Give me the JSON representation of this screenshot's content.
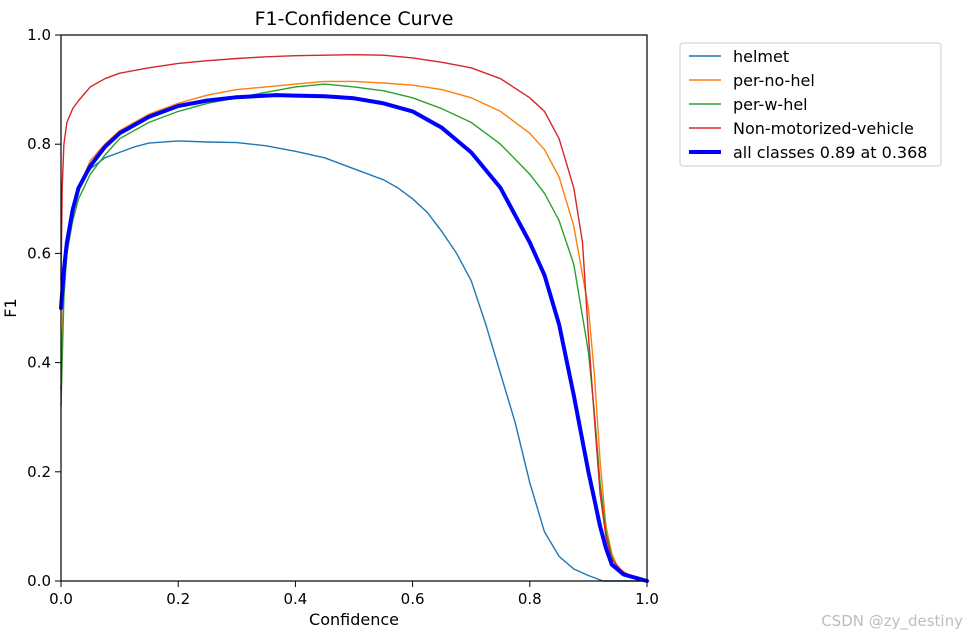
{
  "chart_data": {
    "type": "line",
    "title": "F1-Confidence Curve",
    "xlabel": "Confidence",
    "ylabel": "F1",
    "xlim": [
      0.0,
      1.0
    ],
    "ylim": [
      0.0,
      1.0
    ],
    "xticks": [
      "0.0",
      "0.2",
      "0.4",
      "0.6",
      "0.8",
      "1.0"
    ],
    "yticks": [
      "0.0",
      "0.2",
      "0.4",
      "0.6",
      "0.8",
      "1.0"
    ],
    "legend_position": "outside-top-right",
    "series": [
      {
        "name": "helmet",
        "color": "#1f77b4",
        "points": [
          [
            0.0,
            0.35
          ],
          [
            0.005,
            0.55
          ],
          [
            0.01,
            0.62
          ],
          [
            0.02,
            0.68
          ],
          [
            0.03,
            0.72
          ],
          [
            0.05,
            0.755
          ],
          [
            0.075,
            0.775
          ],
          [
            0.1,
            0.785
          ],
          [
            0.125,
            0.795
          ],
          [
            0.15,
            0.802
          ],
          [
            0.2,
            0.806
          ],
          [
            0.25,
            0.804
          ],
          [
            0.3,
            0.803
          ],
          [
            0.35,
            0.797
          ],
          [
            0.4,
            0.787
          ],
          [
            0.45,
            0.775
          ],
          [
            0.5,
            0.755
          ],
          [
            0.55,
            0.735
          ],
          [
            0.575,
            0.72
          ],
          [
            0.6,
            0.7
          ],
          [
            0.625,
            0.675
          ],
          [
            0.65,
            0.64
          ],
          [
            0.675,
            0.6
          ],
          [
            0.7,
            0.55
          ],
          [
            0.725,
            0.47
          ],
          [
            0.75,
            0.38
          ],
          [
            0.775,
            0.29
          ],
          [
            0.8,
            0.18
          ],
          [
            0.825,
            0.09
          ],
          [
            0.85,
            0.045
          ],
          [
            0.875,
            0.022
          ],
          [
            0.9,
            0.01
          ],
          [
            0.925,
            0.0
          ],
          [
            1.0,
            0.0
          ]
        ]
      },
      {
        "name": "per-no-hel",
        "color": "#ff7f0e",
        "points": [
          [
            0.0,
            0.35
          ],
          [
            0.005,
            0.55
          ],
          [
            0.01,
            0.62
          ],
          [
            0.02,
            0.68
          ],
          [
            0.03,
            0.72
          ],
          [
            0.05,
            0.77
          ],
          [
            0.075,
            0.8
          ],
          [
            0.1,
            0.825
          ],
          [
            0.15,
            0.855
          ],
          [
            0.2,
            0.875
          ],
          [
            0.25,
            0.89
          ],
          [
            0.3,
            0.9
          ],
          [
            0.35,
            0.905
          ],
          [
            0.4,
            0.91
          ],
          [
            0.45,
            0.915
          ],
          [
            0.5,
            0.915
          ],
          [
            0.55,
            0.912
          ],
          [
            0.6,
            0.908
          ],
          [
            0.65,
            0.9
          ],
          [
            0.7,
            0.885
          ],
          [
            0.75,
            0.86
          ],
          [
            0.8,
            0.82
          ],
          [
            0.825,
            0.79
          ],
          [
            0.85,
            0.74
          ],
          [
            0.875,
            0.65
          ],
          [
            0.9,
            0.5
          ],
          [
            0.91,
            0.38
          ],
          [
            0.92,
            0.22
          ],
          [
            0.93,
            0.1
          ],
          [
            0.94,
            0.05
          ],
          [
            0.95,
            0.025
          ],
          [
            0.97,
            0.01
          ],
          [
            1.0,
            0.0
          ]
        ]
      },
      {
        "name": "per-w-hel",
        "color": "#2ca02c",
        "points": [
          [
            0.0,
            0.32
          ],
          [
            0.005,
            0.52
          ],
          [
            0.01,
            0.6
          ],
          [
            0.02,
            0.66
          ],
          [
            0.03,
            0.7
          ],
          [
            0.05,
            0.745
          ],
          [
            0.075,
            0.78
          ],
          [
            0.1,
            0.81
          ],
          [
            0.15,
            0.84
          ],
          [
            0.2,
            0.86
          ],
          [
            0.25,
            0.875
          ],
          [
            0.3,
            0.885
          ],
          [
            0.35,
            0.895
          ],
          [
            0.4,
            0.905
          ],
          [
            0.45,
            0.91
          ],
          [
            0.5,
            0.905
          ],
          [
            0.55,
            0.898
          ],
          [
            0.6,
            0.885
          ],
          [
            0.65,
            0.865
          ],
          [
            0.7,
            0.84
          ],
          [
            0.75,
            0.8
          ],
          [
            0.8,
            0.745
          ],
          [
            0.825,
            0.71
          ],
          [
            0.85,
            0.66
          ],
          [
            0.875,
            0.58
          ],
          [
            0.9,
            0.42
          ],
          [
            0.91,
            0.31
          ],
          [
            0.92,
            0.18
          ],
          [
            0.93,
            0.09
          ],
          [
            0.94,
            0.045
          ],
          [
            0.95,
            0.02
          ],
          [
            0.97,
            0.008
          ],
          [
            1.0,
            0.0
          ]
        ]
      },
      {
        "name": "Non-motorized-vehicle",
        "color": "#d62728",
        "points": [
          [
            0.0,
            0.55
          ],
          [
            0.002,
            0.72
          ],
          [
            0.005,
            0.8
          ],
          [
            0.01,
            0.84
          ],
          [
            0.02,
            0.865
          ],
          [
            0.03,
            0.88
          ],
          [
            0.05,
            0.905
          ],
          [
            0.075,
            0.92
          ],
          [
            0.1,
            0.93
          ],
          [
            0.15,
            0.94
          ],
          [
            0.2,
            0.948
          ],
          [
            0.25,
            0.953
          ],
          [
            0.3,
            0.957
          ],
          [
            0.35,
            0.96
          ],
          [
            0.4,
            0.962
          ],
          [
            0.45,
            0.963
          ],
          [
            0.5,
            0.964
          ],
          [
            0.55,
            0.963
          ],
          [
            0.6,
            0.958
          ],
          [
            0.65,
            0.95
          ],
          [
            0.7,
            0.94
          ],
          [
            0.75,
            0.92
          ],
          [
            0.8,
            0.885
          ],
          [
            0.825,
            0.86
          ],
          [
            0.85,
            0.81
          ],
          [
            0.875,
            0.72
          ],
          [
            0.89,
            0.62
          ],
          [
            0.9,
            0.45
          ],
          [
            0.91,
            0.3
          ],
          [
            0.92,
            0.16
          ],
          [
            0.93,
            0.08
          ],
          [
            0.94,
            0.04
          ],
          [
            0.96,
            0.015
          ],
          [
            1.0,
            0.0
          ]
        ]
      },
      {
        "name": "all classes 0.89 at 0.368",
        "color": "#0000ff",
        "bold": true,
        "points": [
          [
            0.0,
            0.5
          ],
          [
            0.005,
            0.57
          ],
          [
            0.01,
            0.62
          ],
          [
            0.02,
            0.68
          ],
          [
            0.03,
            0.72
          ],
          [
            0.05,
            0.76
          ],
          [
            0.075,
            0.795
          ],
          [
            0.1,
            0.82
          ],
          [
            0.15,
            0.85
          ],
          [
            0.2,
            0.87
          ],
          [
            0.25,
            0.88
          ],
          [
            0.3,
            0.886
          ],
          [
            0.35,
            0.889
          ],
          [
            0.368,
            0.89
          ],
          [
            0.4,
            0.889
          ],
          [
            0.45,
            0.888
          ],
          [
            0.5,
            0.884
          ],
          [
            0.55,
            0.875
          ],
          [
            0.6,
            0.86
          ],
          [
            0.65,
            0.83
          ],
          [
            0.7,
            0.785
          ],
          [
            0.75,
            0.72
          ],
          [
            0.8,
            0.62
          ],
          [
            0.825,
            0.56
          ],
          [
            0.85,
            0.47
          ],
          [
            0.875,
            0.34
          ],
          [
            0.9,
            0.2
          ],
          [
            0.91,
            0.15
          ],
          [
            0.92,
            0.1
          ],
          [
            0.93,
            0.06
          ],
          [
            0.94,
            0.03
          ],
          [
            0.96,
            0.012
          ],
          [
            1.0,
            0.0
          ]
        ]
      }
    ]
  },
  "watermark": "CSDN @zy_destiny"
}
